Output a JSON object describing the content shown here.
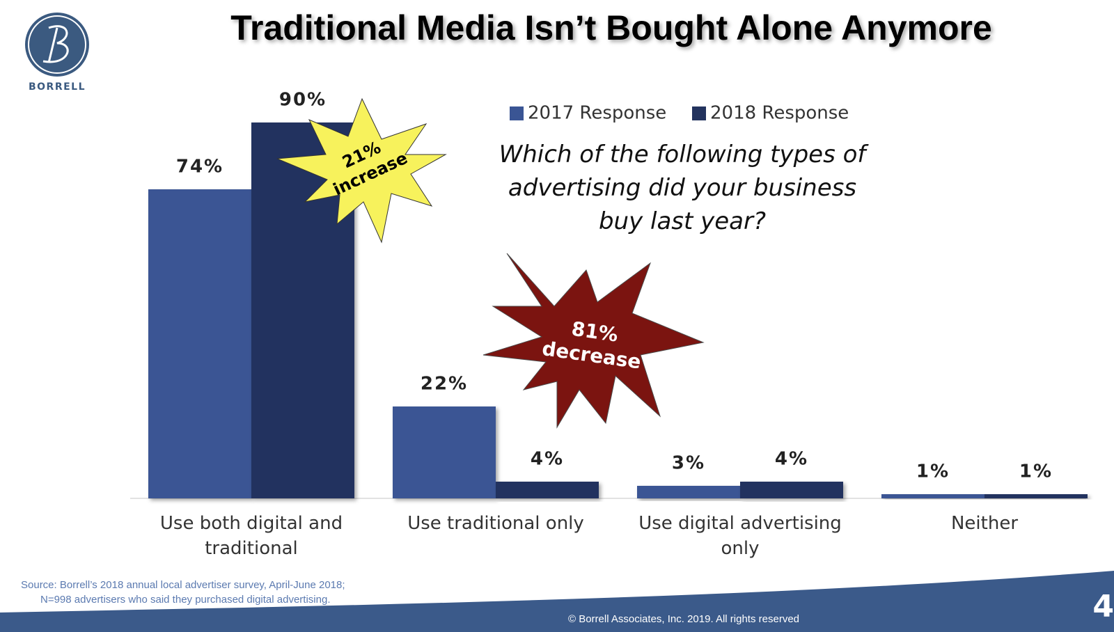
{
  "chart_data": {
    "type": "bar",
    "title": "Traditional Media Isn’t Bought Alone Anymore",
    "logo_text": "BORRELL",
    "question": "Which of the following types of advertising did your business buy last year?",
    "categories": [
      "Use both digital and traditional",
      "Use traditional only",
      "Use digital advertising only",
      "Neither"
    ],
    "series": [
      {
        "name": "2017 Response",
        "color": "#3a5594",
        "values": [
          74,
          22,
          3,
          1
        ],
        "value_labels": [
          "74%",
          "22%",
          "3%",
          "1%"
        ]
      },
      {
        "name": "2018 Response",
        "color": "#23335e",
        "values": [
          90,
          4,
          4,
          1
        ],
        "value_labels": [
          "90%",
          "4%",
          "4%",
          "1%"
        ]
      }
    ],
    "annotations": [
      {
        "lines": [
          "21%",
          "increase"
        ]
      },
      {
        "lines": [
          "81%",
          "decrease"
        ]
      }
    ],
    "source": [
      "Source:  Borrell’s 2018 annual local advertiser survey, April-June 2018;",
      "N=998 advertisers who said they purchased digital advertising."
    ],
    "copyright": "© Borrell Associates, Inc. 2019. All rights reserved",
    "page_number": "4"
  }
}
